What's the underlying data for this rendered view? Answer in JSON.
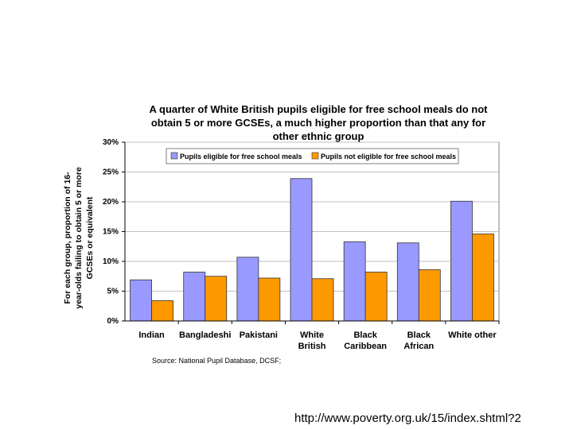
{
  "chart_data": {
    "type": "bar",
    "title_lines": [
      "A quarter of White British pupils eligible for free school meals do not",
      "obtain 5 or more GCSEs, a much higher proportion than that any for",
      "other ethnic group"
    ],
    "ylabel_lines": [
      "For each group, proportion of 16-",
      "year-olds failing to obtain 5 or more",
      "GCSEs or equivalent"
    ],
    "xlabel": "",
    "categories": [
      [
        "Indian"
      ],
      [
        "Bangladeshi"
      ],
      [
        "Pakistani"
      ],
      [
        "White",
        "British"
      ],
      [
        "Black",
        "Caribbean"
      ],
      [
        "Black",
        "African"
      ],
      [
        "White other"
      ]
    ],
    "series": [
      {
        "name": "Pupils eligible for free school meals",
        "color": "#9999ff",
        "values": [
          6.9,
          8.2,
          10.7,
          23.9,
          13.3,
          13.1,
          20.1
        ]
      },
      {
        "name": "Pupils not eligible for free school meals",
        "color": "#ff9900",
        "values": [
          3.4,
          7.5,
          7.2,
          7.1,
          8.2,
          8.6,
          14.6
        ]
      }
    ],
    "ylim": [
      0,
      30
    ],
    "yticks": [
      0,
      5,
      10,
      15,
      20,
      25,
      30
    ],
    "ytick_labels": [
      "0%",
      "5%",
      "10%",
      "15%",
      "20%",
      "25%",
      "30%"
    ],
    "grid": true,
    "legend_position": "top-center",
    "plot_background": "#ffffff",
    "gridline_color": "#c0c0c0"
  },
  "source": "Source: National Pupil Database, DCSF;",
  "footer_url": "http://www.poverty.org.uk/15/index.shtml?2"
}
